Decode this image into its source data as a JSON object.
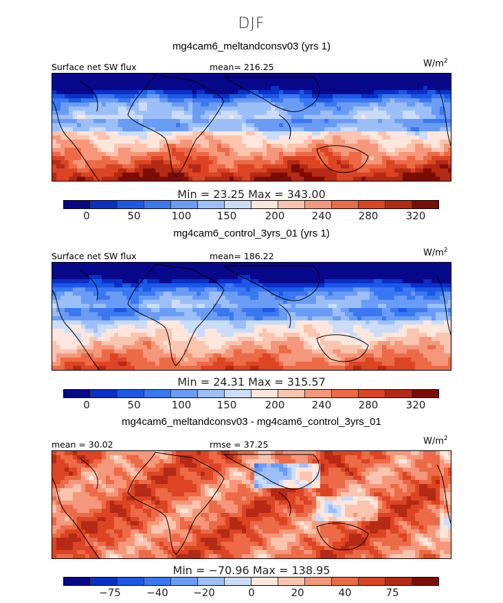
{
  "suptitle": "DJF",
  "palette": {
    "abs": [
      "#08088a",
      "#0a30c8",
      "#1c58e6",
      "#3a78f2",
      "#6a9cf6",
      "#9cbff8",
      "#cadcf8",
      "#fde6dc",
      "#fbc4ae",
      "#f5977a",
      "#ec6a46",
      "#dc4424",
      "#b42a14",
      "#7e0c06"
    ],
    "diff": [
      "#08088a",
      "#0a30c8",
      "#1c58e6",
      "#3a78f2",
      "#6a9cf6",
      "#9cbff8",
      "#cadcf8",
      "#fde6dc",
      "#fbc4ae",
      "#f5977a",
      "#ec6a46",
      "#dc4424",
      "#b42a14",
      "#7e0c06"
    ]
  },
  "chart_data": [
    {
      "type": "heatmap",
      "title": "mg4cam6_meltandconsv03 (yrs 1)",
      "left_label": "Surface net SW flux",
      "mid_label": "mean= 216.25",
      "units": "W/m",
      "units_sup": "2",
      "min_max_text": "Min =   23.25  Max =  343.00",
      "min": 23.25,
      "max": 343.0,
      "mean": 216.25,
      "colorbar_ticks": [
        "0",
        "50",
        "100",
        "150",
        "200",
        "240",
        "280",
        "320"
      ],
      "colorbar_levels": [
        0,
        25,
        50,
        75,
        100,
        125,
        150,
        175,
        200,
        220,
        240,
        260,
        280,
        300,
        320
      ]
    },
    {
      "type": "heatmap",
      "title": "mg4cam6_control_3yrs_01 (yrs 1)",
      "left_label": "Surface net SW flux",
      "mid_label": "mean= 186.22",
      "units": "W/m",
      "units_sup": "2",
      "min_max_text": "Min =   24.31  Max =  315.57",
      "min": 24.31,
      "max": 315.57,
      "mean": 186.22,
      "colorbar_ticks": [
        "0",
        "50",
        "100",
        "150",
        "200",
        "240",
        "280",
        "320"
      ],
      "colorbar_levels": [
        0,
        25,
        50,
        75,
        100,
        125,
        150,
        175,
        200,
        220,
        240,
        260,
        280,
        300,
        320
      ]
    },
    {
      "type": "heatmap",
      "title": "mg4cam6_meltandconsv03 - mg4cam6_control_3yrs_01",
      "left_label": "mean =  30.02",
      "mid_label": "rmse =  37.25",
      "units": "W/m",
      "units_sup": "2",
      "min_max_text": "Min =  −70.96  Max =  138.95",
      "min": -70.96,
      "max": 138.95,
      "mean": 30.02,
      "rmse": 37.25,
      "colorbar_ticks": [
        "−75",
        "−40",
        "−20",
        "0",
        "20",
        "40",
        "75"
      ],
      "colorbar_levels": [
        -100,
        -75,
        -50,
        -40,
        -30,
        -20,
        -10,
        0,
        10,
        20,
        30,
        40,
        50,
        75,
        100
      ]
    }
  ]
}
